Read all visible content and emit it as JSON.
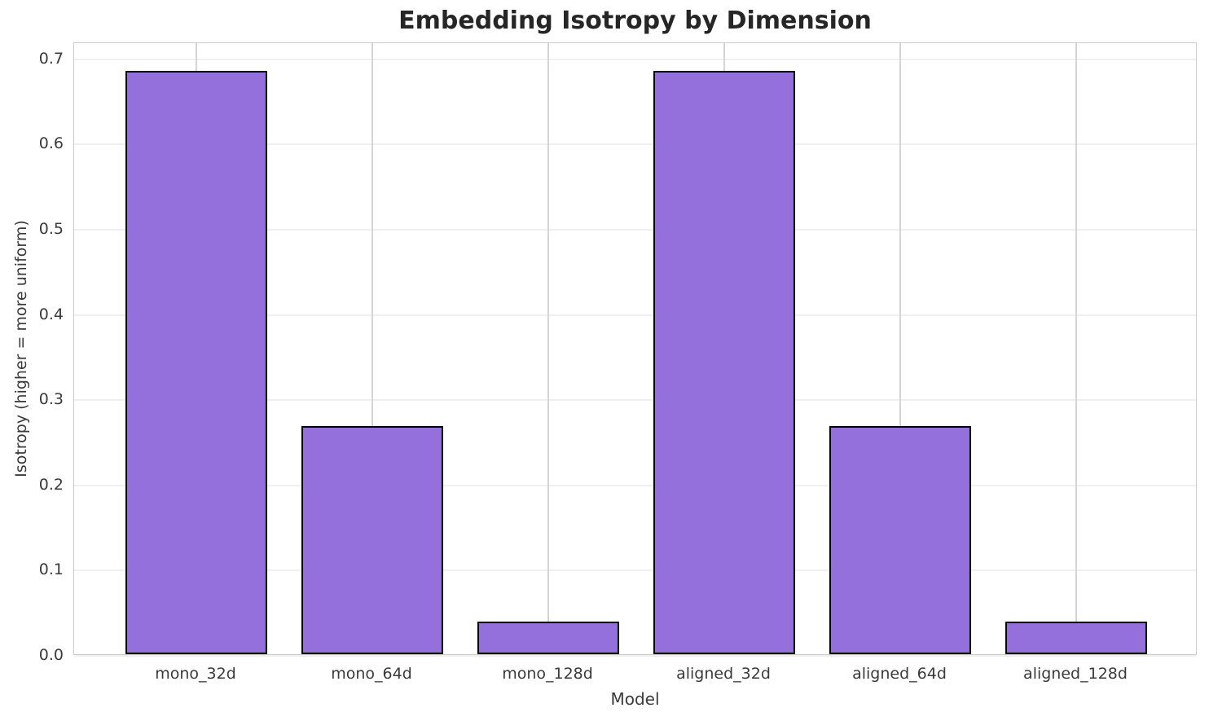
{
  "chart_data": {
    "type": "bar",
    "title": "Embedding Isotropy by Dimension",
    "xlabel": "Model",
    "ylabel": "Isotropy (higher = more uniform)",
    "categories": [
      "mono_32d",
      "mono_64d",
      "mono_128d",
      "aligned_32d",
      "aligned_64d",
      "aligned_128d"
    ],
    "values": [
      0.685,
      0.268,
      0.038,
      0.685,
      0.268,
      0.038
    ],
    "ytick_labels": [
      "0.0",
      "0.1",
      "0.2",
      "0.3",
      "0.4",
      "0.5",
      "0.6",
      "0.7"
    ],
    "yticks": [
      0.0,
      0.1,
      0.2,
      0.3,
      0.4,
      0.5,
      0.6,
      0.7
    ],
    "ylim": [
      0.0,
      0.719
    ],
    "grid": true,
    "legend_visible": false,
    "bar_color": "#9370DB",
    "bar_edge_color": "#000000",
    "text_color": "#3a3a3a",
    "title_color": "#262626",
    "spine_color": "#cccccc"
  }
}
